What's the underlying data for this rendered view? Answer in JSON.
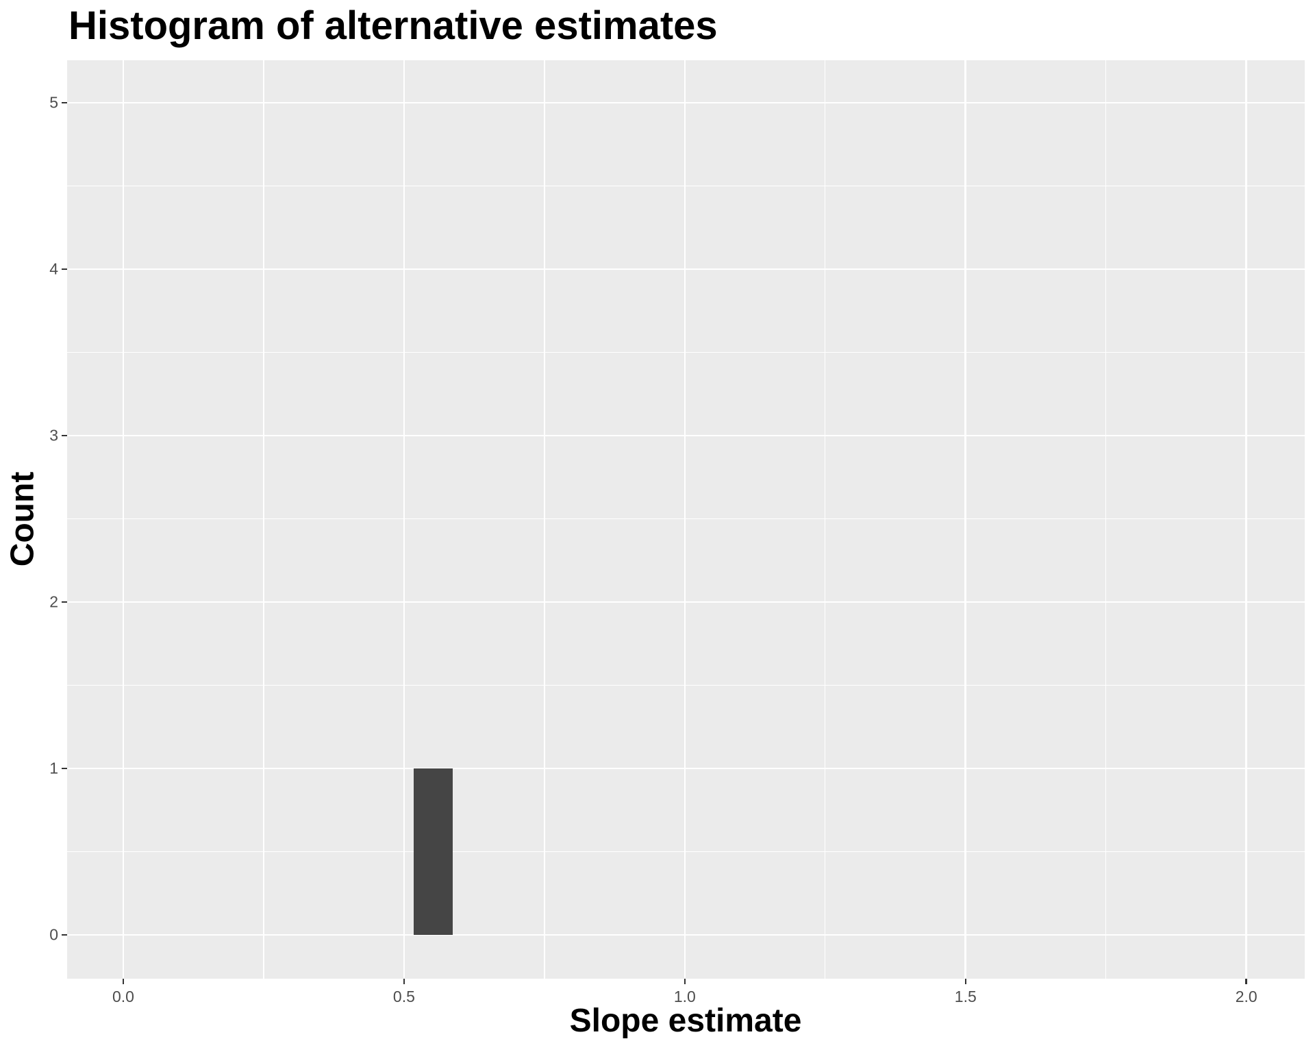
{
  "chart_data": {
    "type": "bar",
    "subtype": "histogram",
    "title": "Histogram of alternative estimates",
    "xlabel": "Slope estimate",
    "ylabel": "Count",
    "bars": [
      {
        "x0": 0.517,
        "x1": 0.587,
        "count": 1
      }
    ],
    "x_ticks": [
      {
        "value": 0.0,
        "label": "0.0"
      },
      {
        "value": 0.5,
        "label": "0.5"
      },
      {
        "value": 1.0,
        "label": "1.0"
      },
      {
        "value": 1.5,
        "label": "1.5"
      },
      {
        "value": 2.0,
        "label": "2.0"
      }
    ],
    "y_ticks": [
      {
        "value": 0,
        "label": "0"
      },
      {
        "value": 1,
        "label": "1"
      },
      {
        "value": 2,
        "label": "2"
      },
      {
        "value": 3,
        "label": "3"
      },
      {
        "value": 4,
        "label": "4"
      },
      {
        "value": 5,
        "label": "5"
      }
    ],
    "x_minor_ticks": [
      0.25,
      0.75,
      1.25,
      1.75
    ],
    "y_minor_ticks": [
      0.5,
      1.5,
      2.5,
      3.5,
      4.5
    ],
    "xlim": [
      -0.1,
      2.104
    ],
    "ylim": [
      -0.263,
      5.255
    ],
    "grid": true,
    "legend": "none",
    "colors": {
      "page_background": "#FFFFFF",
      "panel_background": "#EBEBEB",
      "grid_major": "#FFFFFF",
      "grid_minor": "#FFFFFF",
      "bar_fill": "#454545",
      "tick_mark": "#333333",
      "tick_label": "#4D4D4D",
      "title": "#000000",
      "axis_title": "#000000"
    }
  }
}
